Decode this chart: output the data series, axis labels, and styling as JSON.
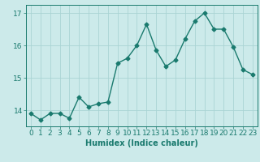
{
  "x": [
    0,
    1,
    2,
    3,
    4,
    5,
    6,
    7,
    8,
    9,
    10,
    11,
    12,
    13,
    14,
    15,
    16,
    17,
    18,
    19,
    20,
    21,
    22,
    23
  ],
  "y": [
    13.9,
    13.7,
    13.9,
    13.9,
    13.75,
    14.4,
    14.1,
    14.2,
    14.25,
    15.45,
    15.6,
    16.0,
    16.65,
    15.85,
    15.35,
    15.55,
    16.2,
    16.75,
    17.0,
    16.5,
    16.5,
    15.95,
    15.25,
    15.1
  ],
  "xlabel": "Humidex (Indice chaleur)",
  "ylim": [
    13.5,
    17.25
  ],
  "xlim": [
    -0.5,
    23.5
  ],
  "yticks": [
    14,
    15,
    16,
    17
  ],
  "xticks": [
    0,
    1,
    2,
    3,
    4,
    5,
    6,
    7,
    8,
    9,
    10,
    11,
    12,
    13,
    14,
    15,
    16,
    17,
    18,
    19,
    20,
    21,
    22,
    23
  ],
  "line_color": "#1a7a6e",
  "bg_color": "#cceaea",
  "grid_color": "#aad4d4",
  "marker": "D",
  "markersize": 2.5,
  "linewidth": 1.0,
  "xlabel_fontsize": 7,
  "tick_fontsize": 6.5
}
